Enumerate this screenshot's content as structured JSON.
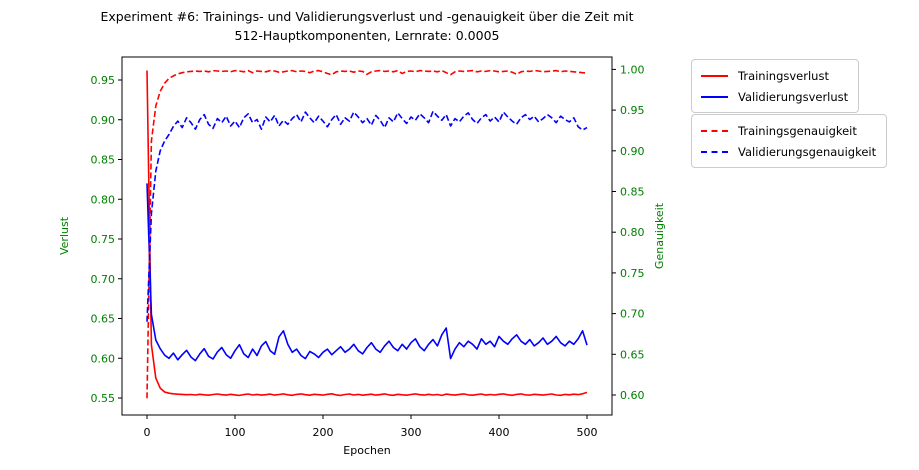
{
  "figure": {
    "title_line1": "Experiment #6: Trainings- und Validierungsverlust und -genauigkeit über die Zeit mit",
    "title_line2": "512-Hauptkomponenten, Lernrate: 0.0005"
  },
  "axes": {
    "xlabel": "Epochen",
    "ylabel_left": "Verlust",
    "ylabel_right": "Genauigkeit",
    "x_ticks": [
      "0",
      "100",
      "200",
      "300",
      "400",
      "500"
    ],
    "y_ticks_left": [
      "0.55",
      "0.60",
      "0.65",
      "0.70",
      "0.75",
      "0.80",
      "0.85",
      "0.90",
      "0.95"
    ],
    "y_ticks_right": [
      "0.60",
      "0.65",
      "0.70",
      "0.75",
      "0.80",
      "0.85",
      "0.90",
      "0.95",
      "1.00"
    ]
  },
  "colors": {
    "red": "#ff0000",
    "blue": "#0000ff",
    "green": "#008000",
    "black": "#000000",
    "legend_border": "#cccccc"
  },
  "chart_data": {
    "type": "line",
    "title": "Experiment #6: Trainings- und Validierungsverlust und -genauigkeit über die Zeit mit 512-Hauptkomponenten, Lernrate: 0.0005",
    "xlabel": "Epochen",
    "ylabel_left": "Verlust",
    "ylabel_right": "Genauigkeit",
    "xlim": [
      -25,
      525
    ],
    "ylim_left": [
      0.534,
      0.978
    ],
    "ylim_right": [
      0.575,
      1.022
    ],
    "grid": false,
    "legend_position": "outside-right",
    "x": {
      "start": 0,
      "step": 5,
      "count": 101
    },
    "series": [
      {
        "name": "Trainingsverlust",
        "axis": "left",
        "color": "#ff0000",
        "style": "solid",
        "values": [
          0.962,
          0.617,
          0.575,
          0.5625,
          0.5575,
          0.556,
          0.5553,
          0.5548,
          0.5545,
          0.5542,
          0.5544,
          0.5538,
          0.5547,
          0.554,
          0.5535,
          0.5544,
          0.555,
          0.5541,
          0.5536,
          0.5546,
          0.5539,
          0.5533,
          0.5543,
          0.555,
          0.5538,
          0.5545,
          0.5536,
          0.5542,
          0.5549,
          0.5537,
          0.5544,
          0.5551,
          0.554,
          0.5534,
          0.5545,
          0.5552,
          0.5541,
          0.5535,
          0.5547,
          0.5542,
          0.5537,
          0.5546,
          0.5553,
          0.5539,
          0.5533,
          0.5544,
          0.555,
          0.5538,
          0.5545,
          0.5535,
          0.5541,
          0.5548,
          0.5536,
          0.5543,
          0.5551,
          0.5539,
          0.5534,
          0.5546,
          0.554,
          0.5535,
          0.5544,
          0.5552,
          0.5541,
          0.5536,
          0.5547,
          0.5538,
          0.5544,
          0.5533,
          0.5549,
          0.5542,
          0.5537,
          0.5545,
          0.5551,
          0.5539,
          0.5535,
          0.5543,
          0.555,
          0.5537,
          0.5544,
          0.5538,
          0.5546,
          0.5552,
          0.554,
          0.5534,
          0.5545,
          0.5551,
          0.5539,
          0.5536,
          0.5547,
          0.5541,
          0.5537,
          0.5544,
          0.555,
          0.5538,
          0.5534,
          0.5545,
          0.554,
          0.5548,
          0.5543,
          0.5553,
          0.557
        ]
      },
      {
        "name": "Validierungsverlust",
        "axis": "left",
        "color": "#0000ff",
        "style": "solid",
        "values": [
          0.82,
          0.655,
          0.623,
          0.612,
          0.604,
          0.6,
          0.6065,
          0.598,
          0.6045,
          0.61,
          0.6015,
          0.597,
          0.6055,
          0.612,
          0.6025,
          0.599,
          0.608,
          0.6135,
          0.6045,
          0.6,
          0.6095,
          0.617,
          0.6055,
          0.601,
          0.6115,
          0.6035,
          0.6155,
          0.621,
          0.6095,
          0.605,
          0.627,
          0.6345,
          0.6175,
          0.6075,
          0.6115,
          0.6035,
          0.5995,
          0.6085,
          0.6055,
          0.601,
          0.6075,
          0.6115,
          0.6045,
          0.6095,
          0.6145,
          0.6075,
          0.6115,
          0.6175,
          0.6095,
          0.6055,
          0.6135,
          0.6195,
          0.6115,
          0.6075,
          0.6155,
          0.6215,
          0.6135,
          0.6095,
          0.6175,
          0.6115,
          0.6195,
          0.6245,
          0.6145,
          0.6095,
          0.6175,
          0.6235,
          0.6155,
          0.6295,
          0.638,
          0.5995,
          0.6115,
          0.6195,
          0.6145,
          0.6215,
          0.6175,
          0.6115,
          0.6245,
          0.6175,
          0.6215,
          0.6145,
          0.6275,
          0.6215,
          0.6175,
          0.6245,
          0.6295,
          0.6215,
          0.6175,
          0.6235,
          0.6155,
          0.6195,
          0.6255,
          0.6175,
          0.6215,
          0.6275,
          0.6195,
          0.6155,
          0.6215,
          0.6175,
          0.6245,
          0.6345,
          0.6165
        ]
      },
      {
        "name": "Trainingsgenauigkeit",
        "axis": "right",
        "color": "#ff0000",
        "style": "dashed",
        "values": [
          0.596,
          0.912,
          0.955,
          0.973,
          0.983,
          0.989,
          0.992,
          0.9945,
          0.996,
          0.997,
          0.9975,
          0.998,
          0.9975,
          0.998,
          0.997,
          0.9985,
          0.998,
          0.9975,
          0.998,
          0.997,
          0.9985,
          0.998,
          0.997,
          0.9985,
          0.996,
          0.998,
          0.9975,
          0.997,
          0.9985,
          0.998,
          0.9965,
          0.997,
          0.998,
          0.9985,
          0.997,
          0.998,
          0.9975,
          0.996,
          0.998,
          0.9985,
          0.997,
          0.995,
          0.9935,
          0.997,
          0.998,
          0.9975,
          0.998,
          0.9965,
          0.998,
          0.9975,
          0.994,
          0.997,
          0.998,
          0.9985,
          0.9975,
          0.998,
          0.997,
          0.9985,
          0.995,
          0.9975,
          0.998,
          0.997,
          0.9985,
          0.998,
          0.9975,
          0.998,
          0.997,
          0.9985,
          0.996,
          0.9935,
          0.997,
          0.998,
          0.9975,
          0.998,
          0.9985,
          0.997,
          0.998,
          0.9975,
          0.9985,
          0.998,
          0.997,
          0.9975,
          0.998,
          0.9965,
          0.994,
          0.997,
          0.998,
          0.9975,
          0.9985,
          0.998,
          0.997,
          0.9975,
          0.998,
          0.9985,
          0.997,
          0.998,
          0.9975,
          0.997,
          0.9965,
          0.996,
          0.9955
        ]
      },
      {
        "name": "Validierungsgenauigkeit",
        "axis": "right",
        "color": "#0000ff",
        "style": "dashed",
        "values": [
          0.69,
          0.823,
          0.875,
          0.9,
          0.912,
          0.92,
          0.93,
          0.9365,
          0.9285,
          0.9405,
          0.9345,
          0.9265,
          0.9385,
          0.9445,
          0.9325,
          0.9275,
          0.9395,
          0.9345,
          0.9425,
          0.9305,
          0.9365,
          0.9285,
          0.9405,
          0.9455,
          0.9345,
          0.9385,
          0.9265,
          0.9415,
          0.9355,
          0.9435,
          0.9305,
          0.9375,
          0.9325,
          0.9395,
          0.9445,
          0.9355,
          0.9475,
          0.9405,
          0.9345,
          0.9425,
          0.9365,
          0.9295,
          0.9385,
          0.9445,
          0.9325,
          0.9405,
          0.9365,
          0.9475,
          0.9415,
          0.9345,
          0.9395,
          0.9315,
          0.9435,
          0.9375,
          0.9285,
          0.9405,
          0.9355,
          0.9465,
          0.9395,
          0.9335,
          0.9415,
          0.9375,
          0.9455,
          0.9405,
          0.9345,
          0.9485,
          0.9425,
          0.9375,
          0.9445,
          0.9305,
          0.9395,
          0.9355,
          0.9425,
          0.9465,
          0.9385,
          0.9335,
          0.9405,
          0.9445,
          0.9365,
          0.9415,
          0.9355,
          0.9475,
          0.9415,
          0.9365,
          0.9325,
          0.9405,
          0.9445,
          0.9385,
          0.9425,
          0.9355,
          0.9395,
          0.9445,
          0.9405,
          0.9345,
          0.9425,
          0.9385,
          0.9355,
          0.9405,
          0.9295,
          0.9255,
          0.9285
        ]
      }
    ]
  },
  "legends": {
    "loss": {
      "items": [
        {
          "label": "Trainingsverlust"
        },
        {
          "label": "Validierungsverlust"
        }
      ]
    },
    "accuracy": {
      "items": [
        {
          "label": "Trainingsgenauigkeit"
        },
        {
          "label": "Validierungsgenauigkeit"
        }
      ]
    }
  }
}
